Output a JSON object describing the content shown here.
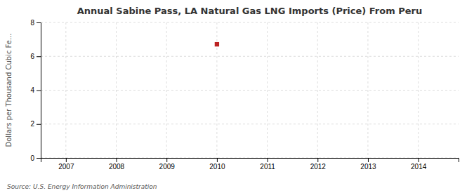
{
  "chart_data": {
    "type": "scatter",
    "title": "Annual Sabine Pass, LA Natural Gas LNG Imports (Price) From Peru",
    "ylabel": "Dollars per Thousand Cubic Fe...",
    "x": [
      2010
    ],
    "values": [
      6.71
    ],
    "color": "#bb2222",
    "marker": "square",
    "xlim": [
      2006.5,
      2014.8
    ],
    "ylim": [
      0,
      8
    ],
    "xticks": [
      2007,
      2008,
      2009,
      2010,
      2011,
      2012,
      2013,
      2014
    ],
    "yticks": [
      0,
      2,
      4,
      6,
      8
    ],
    "grid": true,
    "annotations": [
      "Source: U.S. Energy Information Administration"
    ]
  }
}
